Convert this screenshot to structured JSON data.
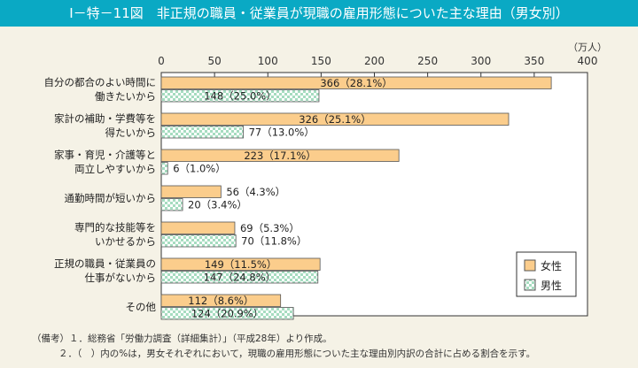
{
  "title": "Ⅰ－特－11図　非正規の職員・従業員が現職の雇用形態についた主な理由（男女別）",
  "notes": [
    "（備考）１．総務省「労働力調査（詳細集計）」（平成28年）より作成。",
    "２．（　）内の%は，男女それぞれにおいて，現職の雇用形態についた主な理由別内訳の合計に占める割合を示す。"
  ],
  "chart_data": {
    "type": "bar",
    "orientation": "horizontal",
    "unit": "（万人）",
    "xlim": [
      0,
      400
    ],
    "xticks": [
      0,
      50,
      100,
      150,
      200,
      250,
      300,
      350,
      400
    ],
    "categories": [
      [
        "自分の都合のよい時間に",
        "働きたいから"
      ],
      [
        "家計の補助・学費等を",
        "得たいから"
      ],
      [
        "家事・育児・介護等と",
        "両立しやすいから"
      ],
      [
        "通勤時間が短いから"
      ],
      [
        "専門的な技能等を",
        "いかせるから"
      ],
      [
        "正規の職員・従業員の",
        "仕事がないから"
      ],
      [
        "その他"
      ]
    ],
    "series": [
      {
        "name": "女性",
        "color": "#fbcd8c",
        "values": [
          366,
          326,
          223,
          56,
          69,
          149,
          112
        ],
        "labels": [
          "366（28.1%）",
          "326（25.1%）",
          "223（17.1%）",
          "56（4.3%）",
          "69（5.3%）",
          "149（11.5%）",
          "112（8.6%）"
        ]
      },
      {
        "name": "男性",
        "color": "#a6dcc0",
        "values": [
          148,
          77,
          6,
          20,
          70,
          147,
          124
        ],
        "labels": [
          "148（25.0%）",
          "77（13.0%）",
          "6（1.0%）",
          "20（3.4%）",
          "70（11.8%）",
          "147（24.8%）",
          "124（20.9%）"
        ]
      }
    ],
    "legend": "bottom-right"
  }
}
